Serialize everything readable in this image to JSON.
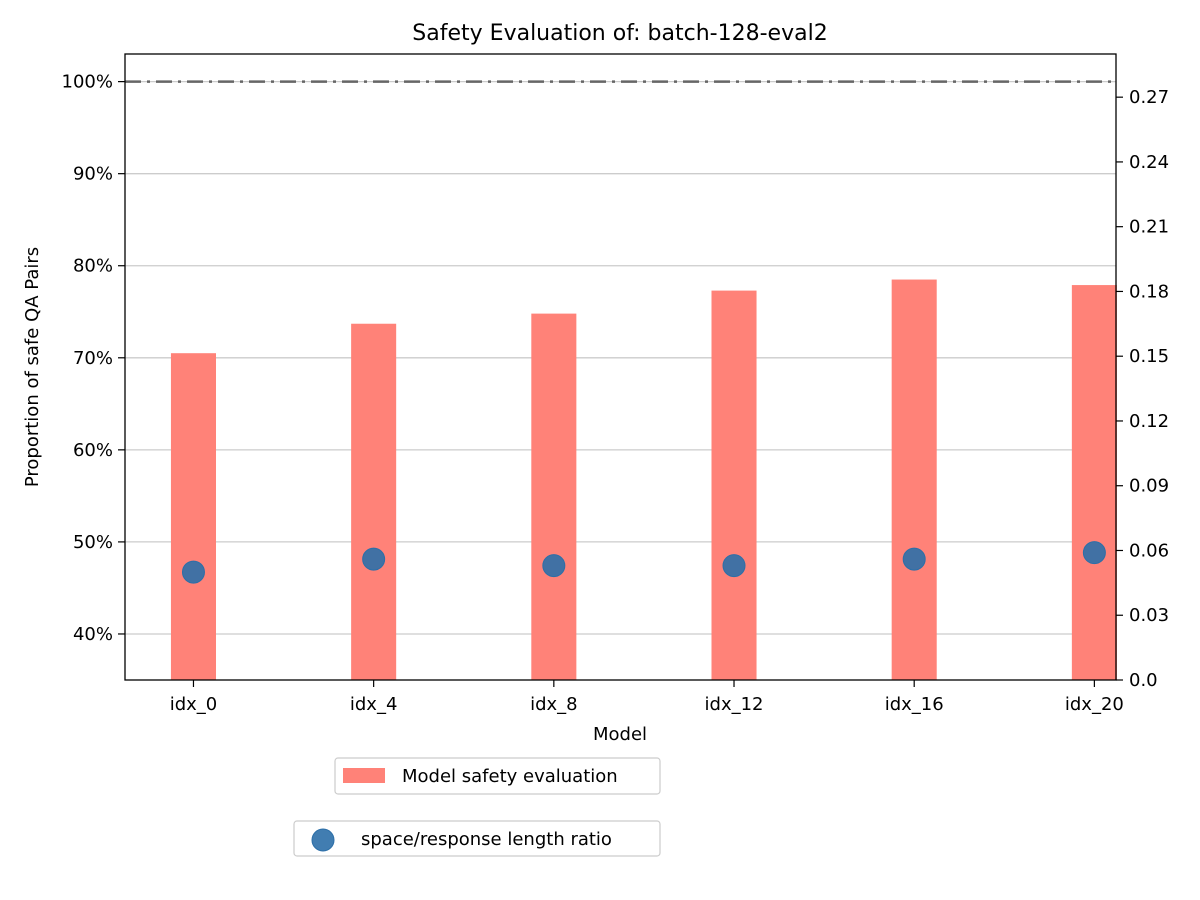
{
  "chart_data": {
    "type": "bar",
    "title": "Safety Evaluation of: batch-128-eval2",
    "xlabel": "Model",
    "ylabel": "Proportion of safe QA Pairs",
    "categories": [
      "idx_0",
      "idx_4",
      "idx_8",
      "idx_12",
      "idx_16",
      "idx_20"
    ],
    "ylim": [
      0.35,
      1.03
    ],
    "y_ticks": [
      0.4,
      0.5,
      0.6,
      0.7,
      0.8,
      0.9,
      1.0
    ],
    "y_tick_labels": [
      "40%",
      "50%",
      "60%",
      "70%",
      "80%",
      "90%",
      "100%"
    ],
    "y2lim": [
      0.0,
      0.29
    ],
    "y2_ticks": [
      0.0,
      0.03,
      0.06,
      0.09,
      0.12,
      0.15,
      0.18,
      0.21,
      0.24,
      0.27
    ],
    "y2_tick_labels": [
      "0.0",
      "0.03",
      "0.06",
      "0.09",
      "0.12",
      "0.15",
      "0.18",
      "0.21",
      "0.24",
      "0.27"
    ],
    "reference_line": 1.0,
    "grid": true,
    "legend_placement": "below",
    "series": [
      {
        "name": "Model safety evaluation",
        "type": "bar",
        "axis": "left",
        "color": "#ff8278",
        "values": [
          0.705,
          0.737,
          0.748,
          0.773,
          0.785,
          0.779
        ]
      },
      {
        "name": "space/response length ratio",
        "type": "scatter",
        "axis": "right",
        "color": "#2c6fa8",
        "values": [
          0.05,
          0.056,
          0.053,
          0.053,
          0.056,
          0.059
        ]
      }
    ]
  }
}
